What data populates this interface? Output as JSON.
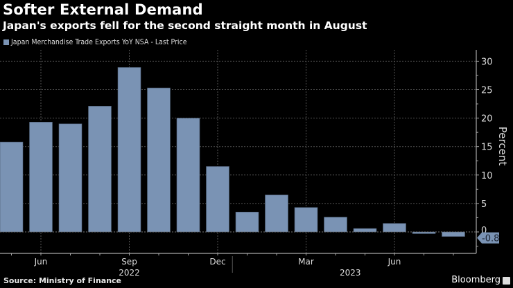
{
  "header": {
    "title": "Softer External Demand",
    "subtitle": "Japan's exports fell for the second straight month in August"
  },
  "footer": {
    "source": "Source: Ministry of Finance",
    "brand": "Bloomberg",
    "brand_icon": "bloomberg-logo-icon"
  },
  "colors": {
    "background": "#000000",
    "bar": "#7a93b4",
    "grid": "#555555",
    "axis": "#aaaaaa"
  },
  "chart_data": {
    "type": "bar",
    "title": "Softer External Demand",
    "subtitle": "Japan's exports fell for the second straight month in August",
    "legend": [
      "Japan Merchandise Trade Exports YoY NSA - Last Price"
    ],
    "legend_position": "top-left",
    "categories": [
      "May 2022",
      "Jun 2022",
      "Jul 2022",
      "Aug 2022",
      "Sep 2022",
      "Oct 2022",
      "Nov 2022",
      "Dec 2022",
      "Jan 2023",
      "Feb 2023",
      "Mar 2023",
      "Apr 2023",
      "May 2023",
      "Jun 2023",
      "Jul 2023",
      "Aug 2023"
    ],
    "series": [
      {
        "name": "Japan Merchandise Trade Exports YoY NSA - Last Price",
        "values": [
          15.8,
          19.3,
          19.0,
          22.1,
          28.9,
          25.3,
          20.0,
          11.5,
          3.5,
          6.5,
          4.3,
          2.6,
          0.6,
          1.5,
          -0.3,
          -0.8
        ]
      }
    ],
    "x_tick_labels": [
      {
        "label": "Jun",
        "category_index": 1
      },
      {
        "label": "Sep",
        "category_index": 4
      },
      {
        "label": "Dec",
        "category_index": 7
      },
      {
        "label": "Mar",
        "category_index": 10
      },
      {
        "label": "Jun",
        "category_index": 13
      }
    ],
    "year_labels": [
      {
        "label": "2022",
        "category_index": 4
      },
      {
        "label": "2023",
        "category_index": 11.5
      }
    ],
    "year_divider_index": 7.5,
    "y_ticks": [
      0,
      5,
      10,
      15,
      20,
      25,
      30
    ],
    "ylim": [
      -4,
      32
    ],
    "ylabel": "Percent",
    "xlabel": "",
    "y_axis_side": "right",
    "last_value_label": "-0.8",
    "grid": true
  }
}
